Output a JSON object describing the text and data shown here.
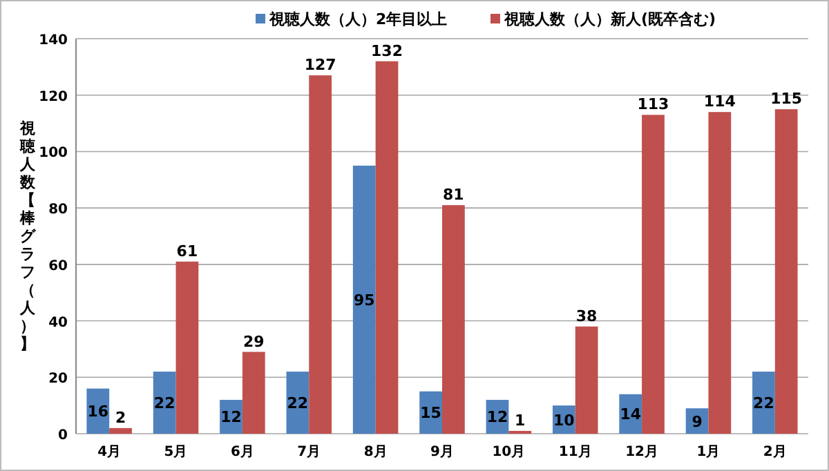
{
  "chart_data": {
    "type": "bar",
    "ylabel": "視聴人数【棒グラフ（人）】",
    "categories": [
      "4月",
      "5月",
      "6月",
      "7月",
      "8月",
      "9月",
      "10月",
      "11月",
      "12月",
      "1月",
      "2月"
    ],
    "series": [
      {
        "name": "視聴人数（人）2年目以上",
        "color": "#4f81bd",
        "values": [
          16,
          22,
          12,
          22,
          95,
          15,
          12,
          10,
          14,
          9,
          22
        ]
      },
      {
        "name": "視聴人数（人）新人(既卒含む)",
        "color": "#c0504d",
        "values": [
          2,
          61,
          29,
          127,
          132,
          81,
          1,
          38,
          113,
          114,
          115
        ]
      }
    ],
    "ylim": [
      0,
      140
    ],
    "yticks": [
      0,
      20,
      40,
      60,
      80,
      100,
      120,
      140
    ],
    "grid": "y",
    "legend": "top",
    "data_labels": true
  }
}
